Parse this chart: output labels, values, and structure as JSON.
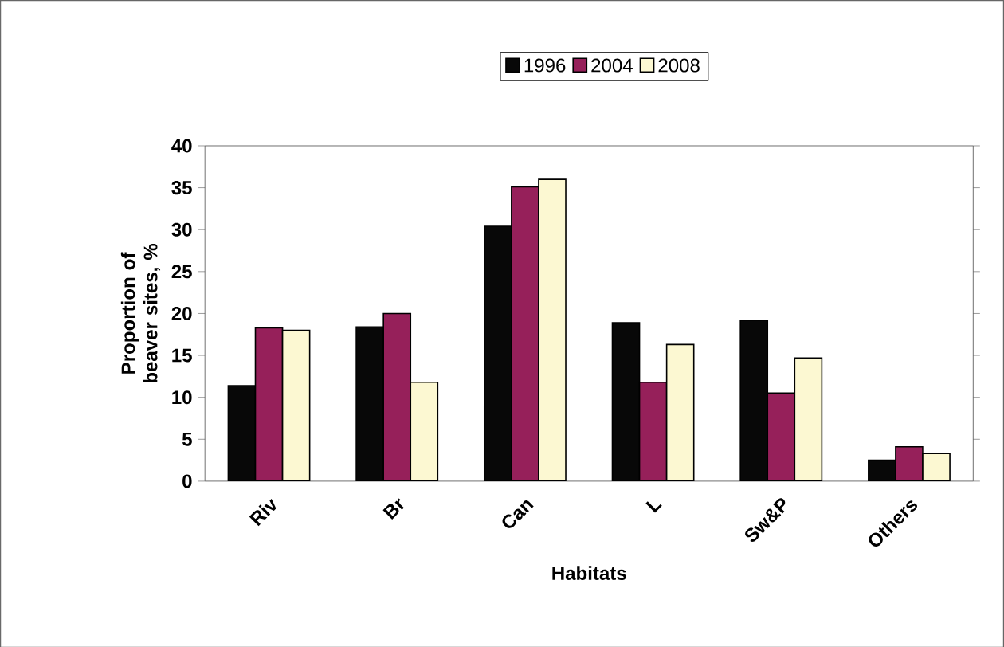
{
  "chart_data": {
    "type": "bar",
    "xlabel": "Habitats",
    "ylabel": "Proportion of beaver sites, %",
    "categories": [
      "Riv",
      "Br",
      "Can",
      "L",
      "Sw&P",
      "Others"
    ],
    "series": [
      {
        "name": "1996",
        "color": "#080808",
        "values": [
          11.4,
          18.4,
          30.4,
          18.9,
          19.2,
          2.5
        ]
      },
      {
        "name": "2004",
        "color": "#96205a",
        "values": [
          18.3,
          20.0,
          35.1,
          11.8,
          10.5,
          4.1
        ]
      },
      {
        "name": "2008",
        "color": "#fcf8d2",
        "values": [
          18.0,
          11.8,
          36.0,
          16.3,
          14.7,
          3.3
        ]
      }
    ],
    "ylim": [
      0,
      40
    ],
    "yticks": [
      0,
      5,
      10,
      15,
      20,
      25,
      30,
      35,
      40
    ],
    "legend": "top",
    "grid": false
  }
}
